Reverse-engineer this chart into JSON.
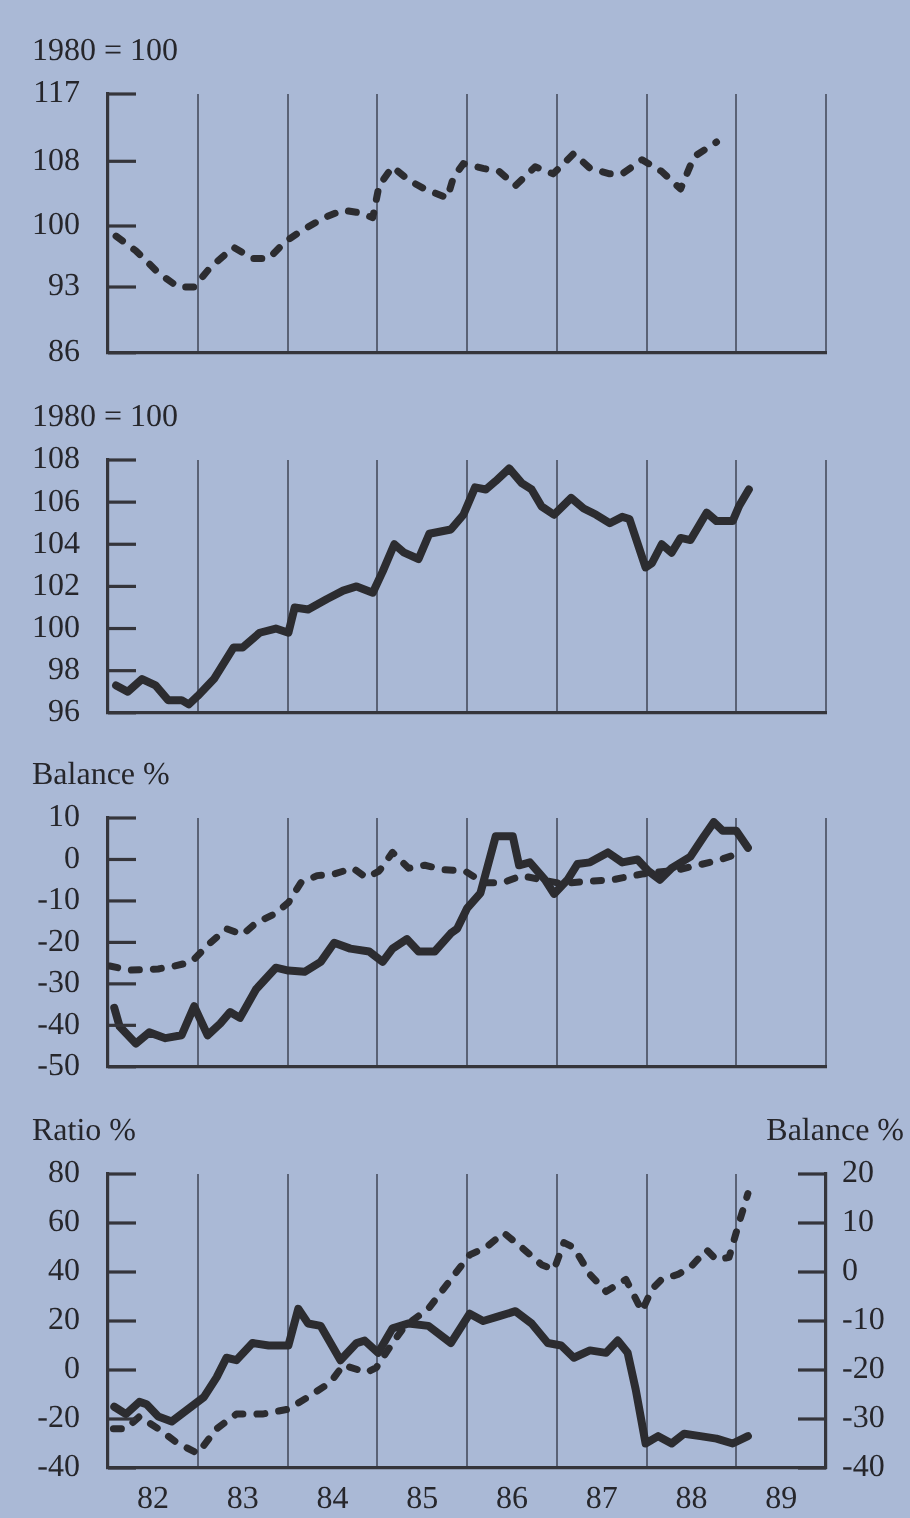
{
  "chart_data": [
    {
      "type": "line",
      "ylabel": "1980 = 100",
      "xlim": [
        81.5,
        89.5
      ],
      "xticks": [
        {
          "value": 82.5,
          "label": null
        },
        {
          "value": 83.5,
          "label": null
        },
        {
          "value": 84.5,
          "label": null
        },
        {
          "value": 85.5,
          "label": null
        },
        {
          "value": 86.5,
          "label": null
        },
        {
          "value": 87.5,
          "label": null
        },
        {
          "value": 88.5,
          "label": null
        },
        {
          "value": 89.5,
          "label": null
        }
      ],
      "ylim": [
        86,
        117
      ],
      "yticks": [
        86,
        93,
        100,
        108,
        117
      ],
      "log": true,
      "grid": "x",
      "tick_labels": "y",
      "series": [
        {
          "color": "#2c2c30",
          "line_style": "dashed",
          "x": [
            81.59,
            81.81,
            82.06,
            82.28,
            82.46,
            82.64,
            82.9,
            83.11,
            83.29,
            83.47,
            83.65,
            83.91,
            84.12,
            84.29,
            84.45,
            84.52,
            84.67,
            84.85,
            85.03,
            85.28,
            85.35,
            85.46,
            85.68,
            85.86,
            86.04,
            86.26,
            86.46,
            86.69,
            86.87,
            87.09,
            87.23,
            87.45,
            87.67,
            87.88,
            88.03,
            88.28
          ],
          "values": [
            98.8,
            97.1,
            94.6,
            93,
            93,
            95.2,
            97.5,
            96.2,
            96.2,
            98.1,
            99.4,
            101,
            101.9,
            101.6,
            101,
            104.9,
            107.3,
            105.6,
            104.5,
            103.4,
            106,
            107.7,
            107.1,
            106.7,
            104.9,
            107.3,
            106.4,
            109,
            107.1,
            106.4,
            106.4,
            108.2,
            106.7,
            104.5,
            108.6,
            110.5
          ]
        }
      ]
    },
    {
      "type": "line",
      "ylabel": "1980 = 100",
      "xlim": [
        81.5,
        89.5
      ],
      "xticks": [
        {
          "value": 82.5,
          "label": null
        },
        {
          "value": 83.5,
          "label": null
        },
        {
          "value": 84.5,
          "label": null
        },
        {
          "value": 85.5,
          "label": null
        },
        {
          "value": 86.5,
          "label": null
        },
        {
          "value": 87.5,
          "label": null
        },
        {
          "value": 88.5,
          "label": null
        },
        {
          "value": 89.5,
          "label": null
        }
      ],
      "ylim": [
        96,
        108
      ],
      "yticks": [
        96,
        98,
        100,
        102,
        104,
        106,
        108
      ],
      "grid": "x",
      "tick_labels": "y",
      "series": [
        {
          "color": "#2c2c30",
          "line_style": "solid",
          "x": [
            81.59,
            81.72,
            81.88,
            82.03,
            82.17,
            82.32,
            82.4,
            82.5,
            82.68,
            82.9,
            83,
            83.19,
            83.37,
            83.51,
            83.58,
            83.73,
            83.94,
            84.12,
            84.27,
            84.45,
            84.56,
            84.69,
            84.8,
            84.96,
            85.08,
            85.32,
            85.46,
            85.59,
            85.71,
            85.82,
            85.97,
            86.11,
            86.22,
            86.33,
            86.47,
            86.66,
            86.8,
            86.94,
            87.09,
            87.23,
            87.31,
            87.49,
            87.56,
            87.67,
            87.78,
            87.88,
            87.99,
            88.17,
            88.28,
            88.46,
            88.53,
            88.64
          ],
          "values": [
            97.3,
            97.0,
            97.6,
            97.3,
            96.6,
            96.6,
            96.4,
            96.8,
            97.6,
            99.1,
            99.1,
            99.8,
            100.0,
            99.8,
            101.0,
            100.9,
            101.4,
            101.8,
            102.0,
            101.7,
            102.7,
            104.0,
            103.6,
            103.3,
            104.5,
            104.7,
            105.4,
            106.7,
            106.6,
            107.0,
            107.6,
            106.9,
            106.6,
            105.8,
            105.4,
            106.2,
            105.7,
            105.4,
            105.0,
            105.3,
            105.2,
            102.9,
            103.1,
            104.0,
            103.6,
            104.3,
            104.2,
            105.5,
            105.1,
            105.1,
            105.8,
            106.6
          ]
        }
      ]
    },
    {
      "type": "line",
      "ylabel": "Balance %",
      "xlim": [
        81.5,
        89.5
      ],
      "xticks": [
        {
          "value": 82.5,
          "label": null
        },
        {
          "value": 83.5,
          "label": null
        },
        {
          "value": 84.5,
          "label": null
        },
        {
          "value": 85.5,
          "label": null
        },
        {
          "value": 86.5,
          "label": null
        },
        {
          "value": 87.5,
          "label": null
        },
        {
          "value": 88.5,
          "label": null
        },
        {
          "value": 89.5,
          "label": null
        }
      ],
      "ylim": [
        -50,
        10
      ],
      "yticks": [
        -50,
        -40,
        -30,
        -20,
        -10,
        0,
        10
      ],
      "grid": "x",
      "tick_labels": "y",
      "series": [
        {
          "color": "#2c2c30",
          "line_style": "solid",
          "x": [
            81.57,
            81.63,
            81.81,
            81.96,
            82.14,
            82.32,
            82.46,
            82.61,
            82.75,
            82.86,
            82.97,
            83.15,
            83.37,
            83.51,
            83.69,
            83.87,
            84.02,
            84.2,
            84.41,
            84.56,
            84.67,
            84.83,
            84.96,
            85.14,
            85.32,
            85.39,
            85.5,
            85.65,
            85.82,
            86.01,
            86.08,
            86.2,
            86.37,
            86.47,
            86.62,
            86.73,
            86.87,
            87.07,
            87.23,
            87.4,
            87.52,
            87.65,
            87.78,
            87.99,
            88.14,
            88.25,
            88.35,
            88.5,
            88.63
          ],
          "values": [
            -35.8,
            -40.3,
            -44.4,
            -41.7,
            -43.1,
            -42.4,
            -35.4,
            -42.4,
            -39.6,
            -36.8,
            -38.2,
            -31.3,
            -26.1,
            -26.8,
            -27.1,
            -24.7,
            -20.1,
            -21.5,
            -22.2,
            -24.7,
            -21.5,
            -19.2,
            -22.2,
            -22.2,
            -17.8,
            -16.7,
            -11.8,
            -8.1,
            5.6,
            5.6,
            -1.4,
            -0.7,
            -4.9,
            -8.3,
            -4.9,
            -1.1,
            -0.7,
            1.7,
            -0.7,
            0.0,
            -2.8,
            -4.9,
            -2.1,
            0.7,
            5.6,
            9.0,
            6.9,
            6.9,
            2.8
          ]
        },
        {
          "color": "#2c2c30",
          "line_style": "dashed",
          "x": [
            81.52,
            81.74,
            82.06,
            82.24,
            82.43,
            82.64,
            82.82,
            83,
            83.15,
            83.35,
            83.51,
            83.65,
            83.83,
            84.02,
            84.23,
            84.38,
            84.52,
            84.67,
            84.85,
            85.03,
            85.25,
            85.48,
            85.68,
            85.9,
            86.11,
            86.33,
            86.55,
            86.84,
            87.12,
            87.45,
            87.85,
            88.07,
            88.28,
            88.53
          ],
          "values": [
            -25.7,
            -26.7,
            -26.4,
            -25.7,
            -24.7,
            -20.1,
            -16.7,
            -18.1,
            -15.3,
            -13.2,
            -10.4,
            -5.6,
            -3.9,
            -3.5,
            -2.1,
            -4.4,
            -2.8,
            1.7,
            -2.1,
            -1.4,
            -2.5,
            -2.8,
            -5.6,
            -5.6,
            -3.9,
            -4.9,
            -5.8,
            -5.3,
            -4.9,
            -3.5,
            -2.5,
            -1.4,
            -0.3,
            1.4
          ]
        }
      ]
    },
    {
      "type": "line",
      "ylabel": "Ratio %",
      "y2label": "Balance %",
      "xlim": [
        81.5,
        89.5
      ],
      "xticks": [
        82,
        {
          "value": 82.5,
          "label": null
        },
        83,
        {
          "value": 83.5,
          "label": null
        },
        84,
        {
          "value": 84.5,
          "label": null
        },
        85,
        {
          "value": 85.5,
          "label": null
        },
        86,
        {
          "value": 86.5,
          "label": null
        },
        87,
        {
          "value": 87.5,
          "label": null
        },
        88,
        {
          "value": 88.5,
          "label": null
        },
        89,
        {
          "value": 89.5,
          "label": null
        }
      ],
      "ylim": [
        -40,
        80
      ],
      "yticks": [
        -40,
        -20,
        0,
        20,
        40,
        60,
        80
      ],
      "y2lim": [
        -40,
        20
      ],
      "y2ticks": [
        -40,
        -30,
        -20,
        -10,
        0,
        10,
        20
      ],
      "grid": "x",
      "series": [
        {
          "color": "#2c2c30",
          "line_style": "solid",
          "x": [
            81.57,
            81.7,
            81.85,
            81.93,
            82.06,
            82.21,
            82.39,
            82.57,
            82.71,
            82.82,
            82.93,
            83.11,
            83.29,
            83.51,
            83.62,
            83.73,
            83.87,
            84.09,
            84.27,
            84.36,
            84.51,
            84.67,
            84.85,
            85.07,
            85.32,
            85.53,
            85.68,
            85.86,
            86.04,
            86.22,
            86.4,
            86.55,
            86.69,
            86.87,
            87.05,
            87.18,
            87.29,
            87.38,
            87.49,
            87.63,
            87.78,
            87.92,
            88.1,
            88.28,
            88.46,
            88.63
          ],
          "values": [
            -15,
            -18,
            -13,
            -14,
            -19,
            -21,
            -16,
            -11,
            -3,
            5,
            4,
            11,
            10,
            10,
            25,
            19,
            18,
            4,
            11,
            12,
            7,
            17,
            19,
            18,
            11,
            23,
            20,
            22,
            24,
            19,
            11,
            10,
            5,
            8,
            7,
            12,
            7,
            -8,
            -30,
            -27,
            -30,
            -26,
            -27,
            -28,
            -30,
            -27
          ]
        },
        {
          "color": "#2c2c30",
          "line_style": "dashed",
          "axis": "y2",
          "x": [
            81.56,
            81.7,
            81.85,
            82.06,
            82.28,
            82.5,
            82.71,
            82.93,
            83.22,
            83.51,
            83.73,
            83.98,
            84.12,
            84.38,
            84.49,
            84.67,
            84.81,
            85.07,
            85.32,
            85.53,
            85.71,
            85.91,
            86.11,
            86.33,
            86.47,
            86.58,
            86.69,
            86.87,
            87.05,
            87.27,
            87.45,
            87.56,
            87.67,
            87.85,
            87.99,
            88.17,
            88.28,
            88.42,
            88.53,
            88.63
          ],
          "values": [
            -32,
            -32,
            -29.5,
            -32,
            -35,
            -37,
            -32,
            -29,
            -29,
            -28,
            -25.5,
            -22.5,
            -19,
            -20.5,
            -19.5,
            -14.5,
            -11,
            -7.5,
            -1.5,
            3.5,
            5,
            8,
            5,
            1.5,
            0.5,
            6,
            5,
            -0.5,
            -4,
            -1.5,
            -8,
            -3.5,
            -1.5,
            -0.5,
            1,
            4.5,
            2.5,
            3,
            10,
            16
          ]
        }
      ]
    }
  ]
}
